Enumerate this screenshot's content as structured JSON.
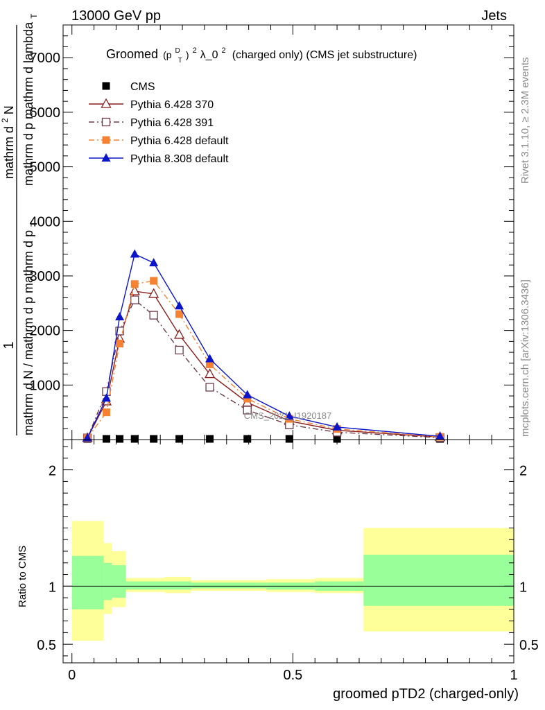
{
  "header": {
    "left": "13000 GeV pp",
    "right": "Jets"
  },
  "side_labels": {
    "rivet": "Rivet 3.1.10, ≥ 2.3M events",
    "mcplots": "mcplots.cern.ch [arXiv:1306.3436]"
  },
  "watermark": "CMS_2021_I1920187",
  "chart_data": [
    {
      "type": "line",
      "title": {
        "prefix": "Groomed",
        "p": "(p",
        "sub": "T",
        "sup": "D",
        "rest": ")",
        "sq": "2",
        "lambda": " λ_0",
        "sq2": "2",
        "suffix": " (charged only) (CMS jet substructure)"
      },
      "ylabel": {
        "line1": "1",
        "line2": "mathrm d N / mathrm d p  mathrm d p",
        "line2_sub": "T",
        "line3": "mathrm d",
        "line3_sup": "2",
        "line3_rest": "N",
        "line4": "mathrm d p  mathrm d lambda",
        "line4_sub": "T"
      },
      "xlim": [
        -0.02,
        1.0
      ],
      "ylim": [
        0,
        7600
      ],
      "yticks": [
        {
          "value": 1000,
          "label": "1000"
        },
        {
          "value": 2000,
          "label": "2000"
        },
        {
          "value": 3000,
          "label": "3000"
        },
        {
          "value": 4000,
          "label": "4000"
        },
        {
          "value": 5000,
          "label": "5000"
        },
        {
          "value": 6000,
          "label": "6000"
        },
        {
          "value": 7000,
          "label": "7000"
        }
      ],
      "legend": [
        {
          "name": "CMS",
          "color": "#000000",
          "marker": "square-filled",
          "line": "none"
        },
        {
          "name": "Pythia 6.428 370",
          "color": "#8b1a1a",
          "marker": "triangle-open",
          "line": "solid"
        },
        {
          "name": "Pythia 6.428 391",
          "color": "#6b3a4a",
          "marker": "square-open",
          "line": "dashdot"
        },
        {
          "name": "Pythia 6.428 default",
          "color": "#f58232",
          "marker": "square-filled",
          "line": "dashdot"
        },
        {
          "name": "Pythia 8.308 default",
          "color": "#0a14c8",
          "marker": "triangle-filled",
          "line": "solid"
        }
      ],
      "x": [
        0.035,
        0.078,
        0.108,
        0.142,
        0.185,
        0.243,
        0.312,
        0.397,
        0.492,
        0.6,
        0.833
      ],
      "series": [
        {
          "name": "CMS",
          "values": [
            5,
            5,
            5,
            5,
            5,
            5,
            5,
            5,
            5,
            5,
            5
          ]
        },
        {
          "name": "Pythia 6.428 370",
          "values": [
            30,
            700,
            1850,
            2720,
            2670,
            1920,
            1200,
            680,
            340,
            170,
            45
          ]
        },
        {
          "name": "Pythia 6.428 391",
          "values": [
            30,
            880,
            1990,
            2560,
            2280,
            1640,
            960,
            540,
            270,
            135,
            35
          ]
        },
        {
          "name": "Pythia 6.428 default",
          "values": [
            30,
            500,
            1760,
            2850,
            2910,
            2300,
            1380,
            750,
            380,
            195,
            50
          ]
        },
        {
          "name": "Pythia 8.308 default",
          "values": [
            30,
            760,
            2250,
            3400,
            3240,
            2450,
            1480,
            820,
            430,
            230,
            60
          ]
        }
      ]
    },
    {
      "type": "area",
      "ylabel": "Ratio to CMS",
      "xlabel": "groomed pTD2 (charged-only)",
      "xlim": [
        -0.02,
        1.0
      ],
      "ylim": [
        0.34,
        2.26
      ],
      "xticks": [
        {
          "value": 0,
          "label": "0"
        },
        {
          "value": 0.5,
          "label": "0.5"
        },
        {
          "value": 1,
          "label": "1"
        }
      ],
      "yticks": [
        {
          "value": 0.5,
          "label": "0.5"
        },
        {
          "value": 1,
          "label": "1"
        },
        {
          "value": 2,
          "label": "2"
        }
      ],
      "bins": [
        {
          "lo": 0.0,
          "hi": 0.072,
          "y_lo": 0.53,
          "y_hi": 1.56,
          "g_lo": 0.8,
          "g_hi": 1.26
        },
        {
          "lo": 0.072,
          "hi": 0.09,
          "y_lo": 0.76,
          "y_hi": 1.37,
          "g_lo": 0.88,
          "g_hi": 1.2
        },
        {
          "lo": 0.09,
          "hi": 0.122,
          "y_lo": 0.82,
          "y_hi": 1.3,
          "g_lo": 0.9,
          "g_hi": 1.18
        },
        {
          "lo": 0.122,
          "hi": 0.21,
          "y_lo": 0.95,
          "y_hi": 1.07,
          "g_lo": 0.97,
          "g_hi": 1.04
        },
        {
          "lo": 0.21,
          "hi": 0.27,
          "y_lo": 0.94,
          "y_hi": 1.08,
          "g_lo": 0.97,
          "g_hi": 1.04
        },
        {
          "lo": 0.27,
          "hi": 0.44,
          "y_lo": 0.96,
          "y_hi": 1.05,
          "g_lo": 0.98,
          "g_hi": 1.03
        },
        {
          "lo": 0.44,
          "hi": 0.55,
          "y_lo": 0.95,
          "y_hi": 1.06,
          "g_lo": 0.97,
          "g_hi": 1.03
        },
        {
          "lo": 0.55,
          "hi": 0.66,
          "y_lo": 0.94,
          "y_hi": 1.07,
          "g_lo": 0.96,
          "g_hi": 1.04
        },
        {
          "lo": 0.66,
          "hi": 1.0,
          "y_lo": 0.61,
          "y_hi": 1.5,
          "g_lo": 0.83,
          "g_hi": 1.27
        }
      ],
      "band_colors": {
        "outer": "#ffff99",
        "inner": "#99ff99"
      }
    }
  ]
}
